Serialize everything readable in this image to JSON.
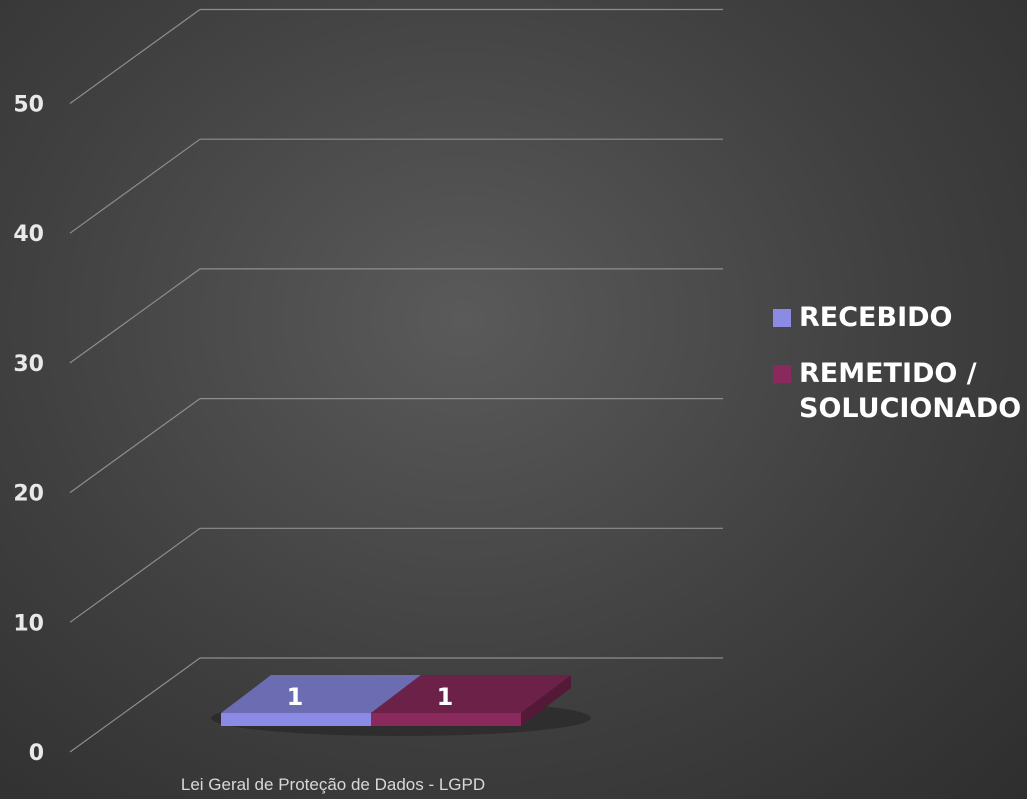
{
  "chart_data": {
    "type": "bar",
    "variant": "3d-clustered",
    "categories": [
      "Lei Geral de Proteção de Dados - LGPD"
    ],
    "series": [
      {
        "name": "RECEBIDO",
        "values": [
          1
        ],
        "color": "#8b8be6"
      },
      {
        "name": "REMETIDO / SOLUCIONADO",
        "values": [
          1
        ],
        "color": "#8a2a5c"
      }
    ],
    "data_labels": [
      "1",
      "1"
    ],
    "y_ticks": [
      "0",
      "10",
      "20",
      "30",
      "40",
      "50"
    ],
    "ylim": [
      0,
      60
    ],
    "grid": true,
    "legend_position": "right",
    "xlabel": "",
    "ylabel": "",
    "title": ""
  }
}
